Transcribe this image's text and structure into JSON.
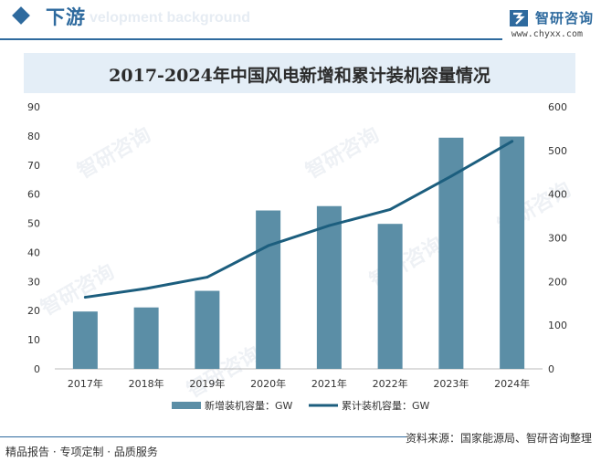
{
  "header": {
    "section_title": "下游",
    "section_subtitle": "velopment background",
    "brand_name": "智研咨询",
    "brand_url": "www.chyxx.com"
  },
  "footer": {
    "left_text": "精品报告 · 专项定制 · 品质服务",
    "source_text": "资料来源：国家能源局、智研咨询整理"
  },
  "watermark": {
    "text": "智研咨询"
  },
  "colors": {
    "accent": "#2e6a9e",
    "bar": "#5b8ea6",
    "line": "#1c5e7e",
    "title_bar": "#e4eef7"
  },
  "chart_data": {
    "type": "bar",
    "title": "2017-2024年中国风电新增和累计装机容量情况",
    "categories": [
      "2017年",
      "2018年",
      "2019年",
      "2020年",
      "2021年",
      "2022年",
      "2023年",
      "2024年"
    ],
    "series": [
      {
        "name": "新增装机容量：GW",
        "type": "bar",
        "axis": "left",
        "values": [
          19.7,
          21.1,
          26.8,
          54.4,
          55.9,
          49.8,
          79.4,
          79.8
        ]
      },
      {
        "name": "累计装机容量：GW",
        "type": "line",
        "axis": "right",
        "values": [
          164,
          184,
          210,
          282,
          328,
          365,
          441,
          521
        ]
      }
    ],
    "ylim_left": [
      0,
      90
    ],
    "yticks_left": [
      0,
      10,
      20,
      30,
      40,
      50,
      60,
      70,
      80,
      90
    ],
    "ylim_right": [
      0,
      600
    ],
    "yticks_right": [
      0,
      100,
      200,
      300,
      400,
      500,
      600
    ],
    "grid": false,
    "legend_position": "bottom-center"
  }
}
